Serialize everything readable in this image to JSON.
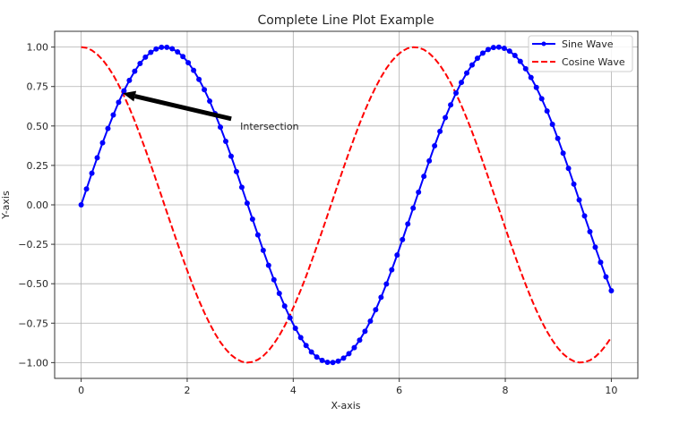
{
  "chart_data": {
    "type": "line",
    "title": "Complete Line Plot Example",
    "xlabel": "X-axis",
    "ylabel": "Y-axis",
    "xlim": [
      -0.5,
      10.5
    ],
    "ylim": [
      -1.1,
      1.1
    ],
    "xticks": [
      0,
      2,
      4,
      6,
      8,
      10
    ],
    "xtick_labels": [
      "0",
      "2",
      "4",
      "6",
      "8",
      "10"
    ],
    "yticks": [
      1.0,
      0.75,
      0.5,
      0.25,
      0.0,
      -0.25,
      -0.5,
      -0.75,
      -1.0
    ],
    "ytick_labels": [
      "1.00",
      "0.75",
      "0.50",
      "0.25",
      "0.00",
      "−0.25",
      "−0.50",
      "−0.75",
      "−1.00"
    ],
    "grid": true,
    "legend_position": "top-right",
    "x_range": {
      "start": 0,
      "stop": 10,
      "num": 100
    },
    "series": [
      {
        "name": "Sine Wave",
        "function": "sin(x)",
        "color": "#0000ff",
        "style": "solid",
        "marker": "o"
      },
      {
        "name": "Cosine Wave",
        "function": "cos(x)",
        "color": "#ff0000",
        "style": "dashed",
        "marker": ""
      }
    ],
    "annotation": {
      "text": "Intersection",
      "xy": [
        0.785,
        0.707
      ],
      "xytext": [
        3.0,
        0.5
      ],
      "arrow_color": "#000000"
    }
  }
}
